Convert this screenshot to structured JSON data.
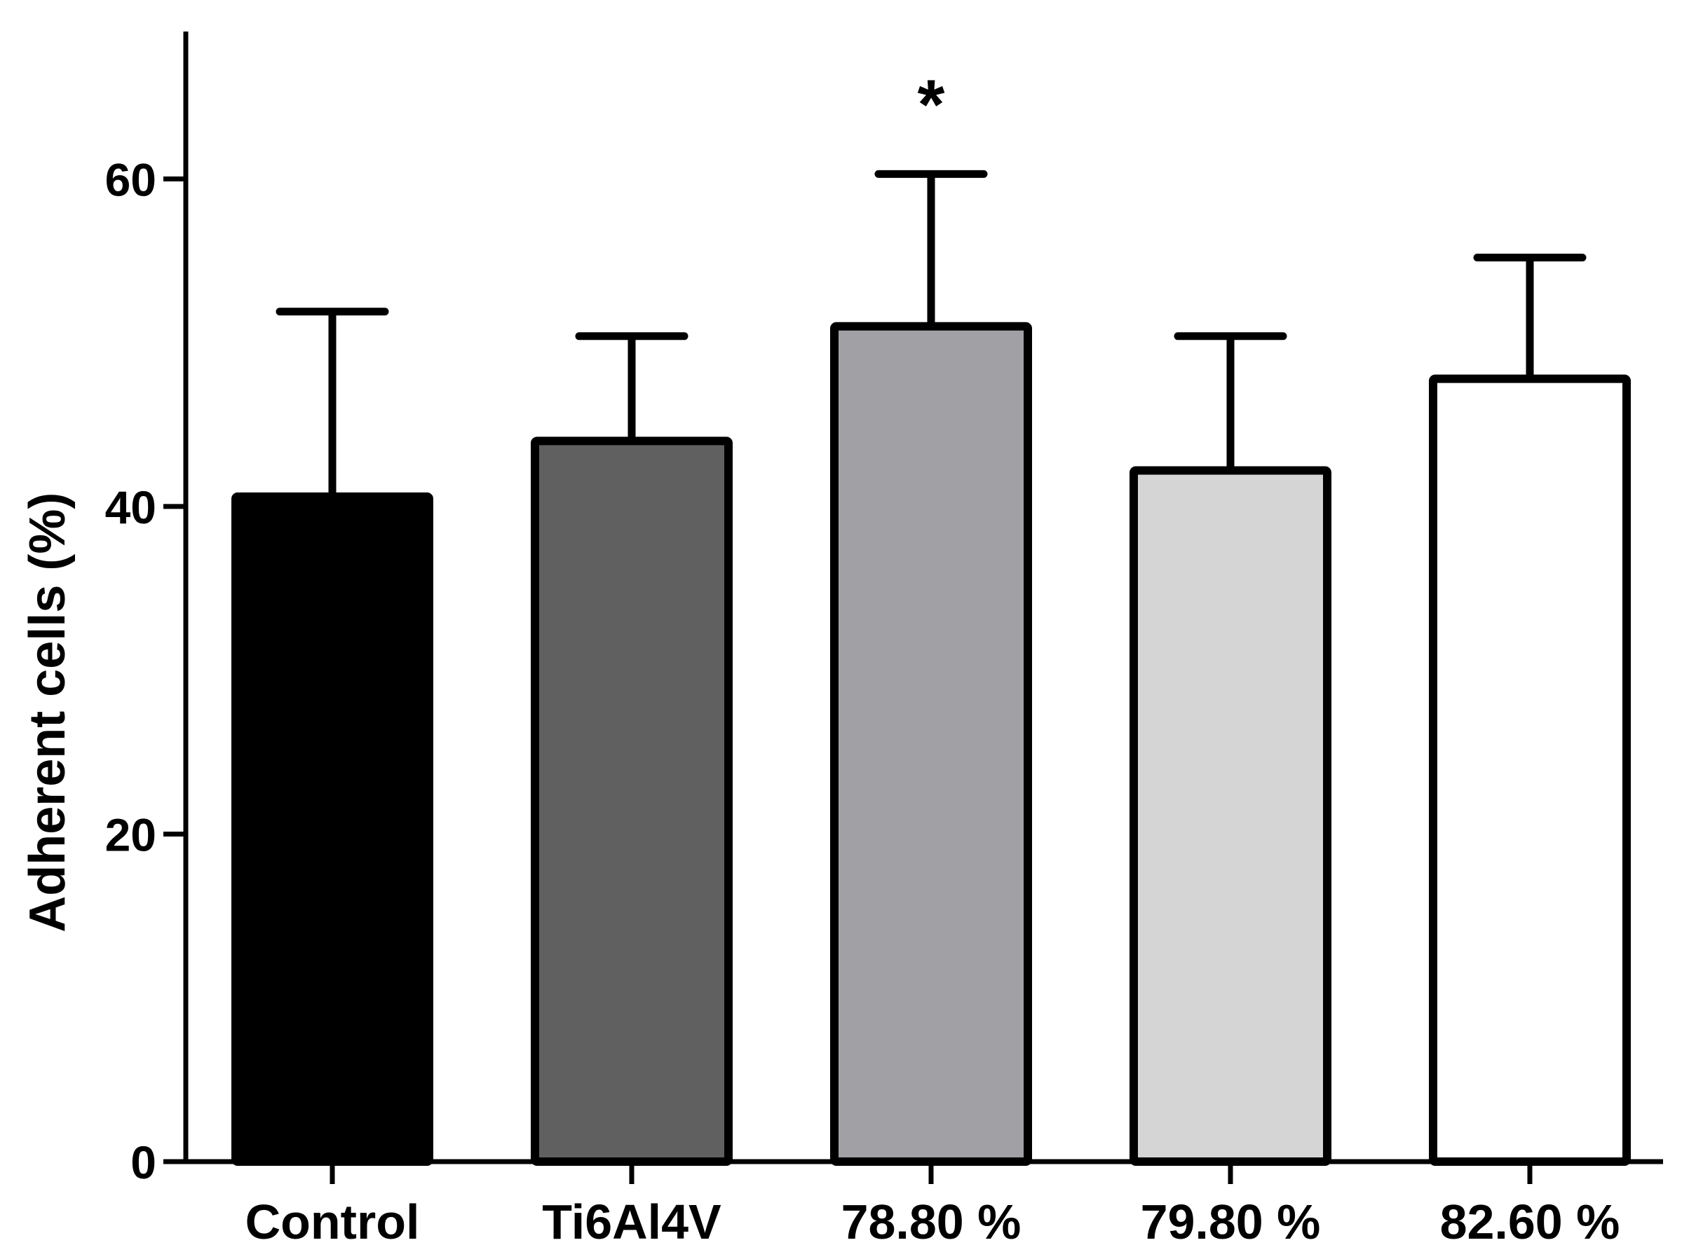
{
  "chart_data": {
    "type": "bar",
    "title": "",
    "xlabel": "",
    "ylabel": "Adherent cells (%)",
    "ylim": [
      0,
      69
    ],
    "yticks": [
      0,
      20,
      40,
      60
    ],
    "yticks_labels": [
      "0",
      "20",
      "40",
      "60"
    ],
    "grid": false,
    "legend": "none",
    "categories": [
      "Control",
      "Ti6Al4V",
      "78.80 %",
      "79.80 %",
      "82.60 %"
    ],
    "values": [
      40.6,
      44.0,
      51.0,
      42.2,
      47.8
    ],
    "errors": [
      11.3,
      6.4,
      9.3,
      8.2,
      7.4
    ],
    "fill_colors": [
      "#000000",
      "#606060",
      "#a1a1a5",
      "#d5d5d5",
      "#ffffff"
    ],
    "outline_color": "#000000",
    "annotations": [
      {
        "category": "78.80 %",
        "text": "*"
      }
    ]
  }
}
